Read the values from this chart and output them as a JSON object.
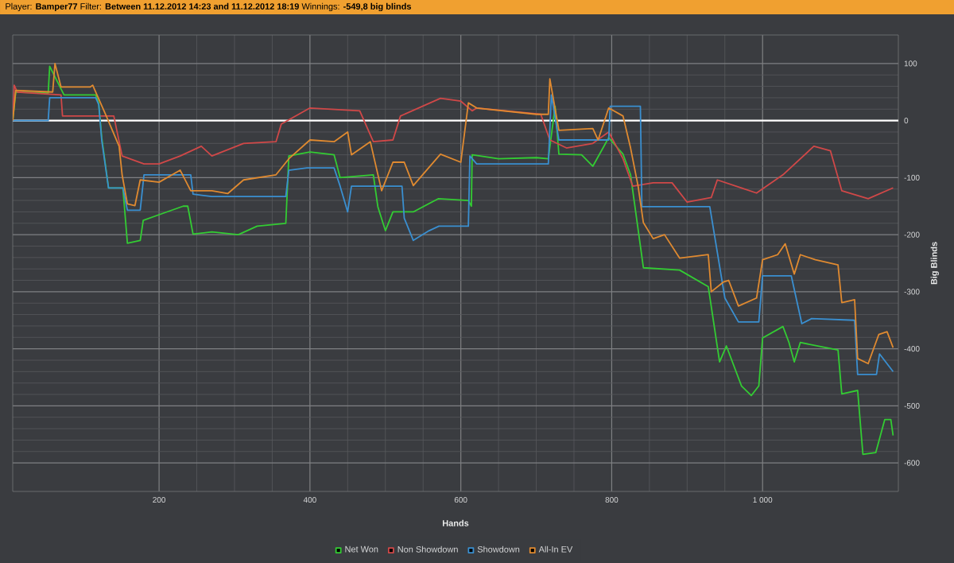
{
  "chart_data": {
    "type": "line",
    "title": "Player: **Bamper77** Filter: **Between 11.12.2012 14:23 and 11.12.2012 18:19** Winnings: **-549,8 big blinds**",
    "xlabel": "Hands",
    "ylabel": "Big Blinds",
    "xlim": [
      6,
      1180
    ],
    "ylim": [
      -650,
      150
    ],
    "xticks": [
      200,
      400,
      600,
      800,
      {
        "value": 1000,
        "label": "1 000"
      }
    ],
    "yticks": [
      100,
      0,
      -100,
      -200,
      -300,
      -400,
      -500,
      -600
    ],
    "grid": true,
    "legend": "bottom",
    "marker": "none",
    "line_style": "solid",
    "ref_lines": [
      {
        "axis": "y",
        "value": 0,
        "color": "#ffffff"
      }
    ],
    "series": [
      {
        "name": "Net Won",
        "color": "#33cc33",
        "x": [
          6,
          10,
          53,
          55,
          74,
          116,
          120,
          124,
          133,
          152,
          158,
          175,
          179,
          200,
          232,
          238,
          245,
          270,
          305,
          330,
          368,
          372,
          400,
          432,
          440,
          484,
          490,
          500,
          510,
          537,
          570,
          610,
          614,
          615,
          650,
          700,
          716,
          725,
          730,
          760,
          775,
          796,
          815,
          825,
          842,
          890,
          928,
          943,
          952,
          972,
          985,
          995,
          1000,
          1027,
          1035,
          1042,
          1050,
          1100,
          1105,
          1126,
          1133,
          1150,
          1162,
          1170,
          1173
        ],
        "values": [
          0,
          50,
          48,
          95,
          45,
          45,
          30,
          -30,
          -118,
          -118,
          -215,
          -210,
          -175,
          -165,
          -150,
          -150,
          -199,
          -195,
          -200,
          -185,
          -180,
          -62,
          -55,
          -60,
          -100,
          -95,
          -151,
          -193,
          -160,
          -160,
          -137,
          -140,
          -150,
          -60,
          -67,
          -65,
          -67,
          25,
          -59,
          -60,
          -80,
          -30,
          -59,
          -95,
          -258,
          -262,
          -291,
          -423,
          -395,
          -465,
          -482,
          -465,
          -381,
          -361,
          -389,
          -423,
          -389,
          -402,
          -479,
          -473,
          -585,
          -582,
          -524,
          -524,
          -552
        ]
      },
      {
        "name": "Non Showdown",
        "color": "#d04848",
        "x": [
          6,
          8,
          12,
          70,
          72,
          140,
          151,
          180,
          200,
          228,
          256,
          270,
          312,
          355,
          362,
          400,
          466,
          484,
          510,
          520,
          573,
          600,
          615,
          621,
          706,
          718,
          740,
          775,
          796,
          815,
          828,
          855,
          880,
          900,
          932,
          940,
          972,
          992,
          1027,
          1068,
          1090,
          1105,
          1140,
          1173
        ],
        "values": [
          0,
          62,
          50,
          45,
          8,
          8,
          -62,
          -76,
          -76,
          -62,
          -45,
          -62,
          -40,
          -37,
          -6,
          22,
          17,
          -37,
          -34,
          8,
          39,
          34,
          17,
          22,
          11,
          -34,
          -48,
          -40,
          -20,
          -67,
          -115,
          -109,
          -109,
          -143,
          -135,
          -104,
          -118,
          -127,
          -95,
          -45,
          -53,
          -123,
          -137,
          -118
        ]
      },
      {
        "name": "Showdown",
        "color": "#3a8fd0",
        "x": [
          6,
          53,
          55,
          116,
          120,
          124,
          133,
          152,
          158,
          175,
          180,
          242,
          245,
          270,
          368,
          372,
          396,
          432,
          440,
          450,
          455,
          522,
          525,
          537,
          558,
          571,
          610,
          612,
          621,
          716,
          720,
          730,
          796,
          798,
          838,
          840,
          930,
          950,
          968,
          995,
          1000,
          1038,
          1052,
          1065,
          1122,
          1126,
          1151,
          1155,
          1173
        ],
        "values": [
          0,
          0,
          40,
          40,
          28,
          -35,
          -118,
          -118,
          -157,
          -157,
          -95,
          -95,
          -129,
          -133,
          -133,
          -87,
          -83,
          -83,
          -115,
          -160,
          -115,
          -115,
          -171,
          -210,
          -193,
          -185,
          -185,
          -62,
          -76,
          -76,
          45,
          -34,
          -34,
          25,
          25,
          -151,
          -151,
          -311,
          -353,
          -353,
          -272,
          -272,
          -356,
          -347,
          -350,
          -445,
          -445,
          -409,
          -440
        ]
      },
      {
        "name": "All-In EV",
        "color": "#e08a30",
        "x": [
          6,
          10,
          59,
          62,
          70,
          109,
          112,
          130,
          147,
          151,
          158,
          168,
          175,
          200,
          228,
          242,
          270,
          291,
          312,
          355,
          372,
          400,
          432,
          450,
          455,
          480,
          495,
          510,
          525,
          537,
          573,
          600,
          610,
          621,
          700,
          716,
          718,
          730,
          775,
          782,
          796,
          815,
          825,
          835,
          842,
          855,
          870,
          890,
          928,
          932,
          948,
          955,
          968,
          992,
          1000,
          1020,
          1030,
          1042,
          1050,
          1070,
          1100,
          1105,
          1122,
          1126,
          1140,
          1154,
          1165,
          1173
        ],
        "values": [
          0,
          53,
          50,
          100,
          59,
          59,
          62,
          8,
          -45,
          -95,
          -146,
          -149,
          -104,
          -108,
          -87,
          -123,
          -123,
          -128,
          -104,
          -95,
          -67,
          -34,
          -37,
          -20,
          -60,
          -37,
          -123,
          -73,
          -73,
          -114,
          -59,
          -73,
          31,
          22,
          11,
          11,
          73,
          -17,
          -14,
          -34,
          22,
          8,
          -48,
          -115,
          -179,
          -207,
          -200,
          -241,
          -235,
          -300,
          -283,
          -280,
          -325,
          -311,
          -244,
          -235,
          -216,
          -269,
          -235,
          -244,
          -253,
          -319,
          -314,
          -417,
          -426,
          -375,
          -370,
          -398
        ]
      }
    ]
  }
}
